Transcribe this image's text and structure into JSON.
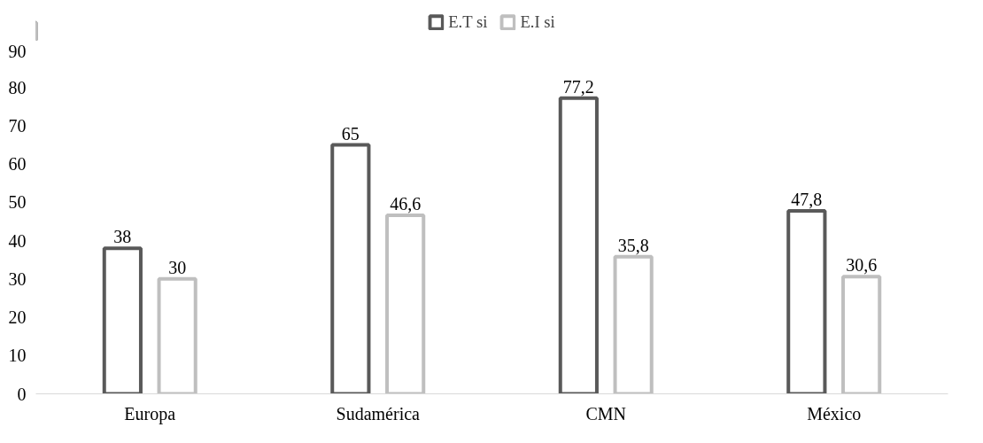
{
  "chart_data": {
    "type": "bar",
    "categories": [
      "Europa",
      "Sudamérica",
      "CMN",
      "México"
    ],
    "series": [
      {
        "name": "E.T si",
        "color": "#595959",
        "values": [
          38,
          65,
          77.2,
          47.8
        ],
        "value_labels": [
          "38",
          "65",
          "77,2",
          "47,8"
        ]
      },
      {
        "name": "E.I si",
        "color": "#bfbfbf",
        "values": [
          30,
          46.6,
          35.8,
          30.6
        ],
        "value_labels": [
          "30",
          "46,6",
          "35,8",
          "30,6"
        ]
      }
    ],
    "ylim": [
      0,
      90
    ],
    "yticks": [
      0,
      10,
      20,
      30,
      40,
      50,
      60,
      70,
      80,
      90
    ],
    "grid": false,
    "legend": "top"
  }
}
